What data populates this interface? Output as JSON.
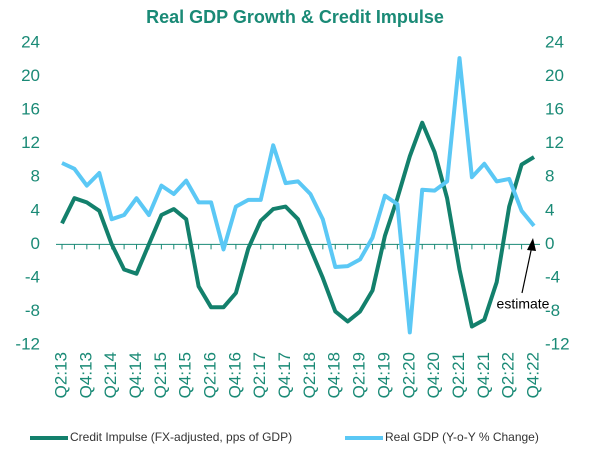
{
  "chart_data": {
    "type": "line",
    "title": "Real GDP Growth & Credit Impulse",
    "categories": [
      "Q2:13",
      null,
      "Q4:13",
      null,
      "Q2:14",
      null,
      "Q4:14",
      null,
      "Q2:15",
      null,
      "Q4:15",
      null,
      "Q2:16",
      null,
      "Q4:16",
      null,
      "Q2:17",
      null,
      "Q4:17",
      null,
      "Q2:18",
      null,
      "Q4:18",
      null,
      "Q2:19",
      null,
      "Q4:19",
      null,
      "Q2:20",
      null,
      "Q4:20",
      null,
      "Q2:21",
      null,
      "Q4:21",
      null,
      "Q2:22",
      null,
      "Q4:22"
    ],
    "series": [
      {
        "name": "Credit Impulse (FX-adjusted, pps of GDP)",
        "color": "#13806c",
        "values": [
          2.5,
          5.5,
          5,
          4,
          0,
          -3,
          -3.5,
          0,
          3.5,
          4.2,
          3,
          -5,
          -7.5,
          -7.5,
          -5.8,
          -0.5,
          2.8,
          4.2,
          4.5,
          3,
          -0.5,
          -4,
          -8,
          -9.2,
          -8,
          -5.5,
          1,
          5.5,
          10.5,
          14.5,
          11,
          5.5,
          -3,
          -9.8,
          -9,
          -4.5,
          4.5,
          9.5,
          10.4
        ]
      },
      {
        "name": "Real GDP (Y-o-Y % Change)",
        "color": "#5bc8f5",
        "axis": "y2",
        "values": [
          9.7,
          9,
          7,
          8.5,
          3,
          3.5,
          5.5,
          3.5,
          7,
          6,
          7.6,
          5,
          5,
          -0.6,
          4.5,
          5.3,
          5.3,
          11.8,
          7.3,
          7.5,
          6,
          3,
          -2.7,
          -2.6,
          -1.8,
          0.8,
          5.8,
          4.8,
          -10.5,
          6.5,
          6.4,
          7.5,
          22.2,
          8,
          9.6,
          7.5,
          7.8,
          4,
          2.2
        ]
      }
    ],
    "ylim": [
      -12,
      24
    ],
    "yticks": [
      -12,
      -8,
      -4,
      0,
      4,
      8,
      12,
      16,
      20,
      24
    ],
    "y2lim": [
      -12,
      24
    ],
    "y2ticks": [
      -12,
      -8,
      -4,
      0,
      4,
      8,
      12,
      16,
      20,
      24
    ],
    "annotation": "estimate",
    "legend": "bottom"
  }
}
